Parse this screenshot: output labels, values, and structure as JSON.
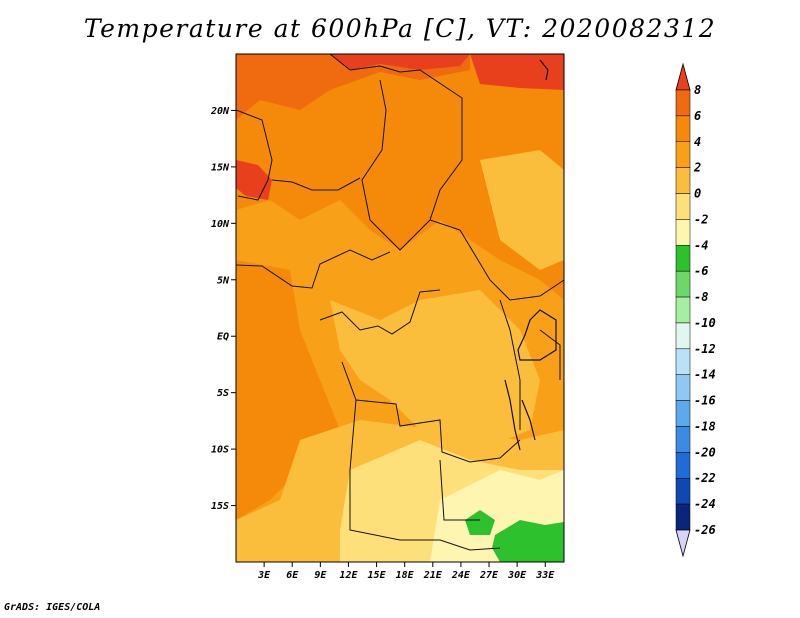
{
  "title": "Temperature at 600hPa [C], VT: 2020082312",
  "footer": "GrADS: IGES/COLA",
  "map": {
    "lon_range": [
      0,
      35
    ],
    "lat_range": [
      -20,
      25
    ],
    "lat_ticks": [
      {
        "value": 20,
        "label": "20N"
      },
      {
        "value": 15,
        "label": "15N"
      },
      {
        "value": 10,
        "label": "10N"
      },
      {
        "value": 5,
        "label": "5N"
      },
      {
        "value": 0,
        "label": "EQ"
      },
      {
        "value": -5,
        "label": "5S"
      },
      {
        "value": -10,
        "label": "10S"
      },
      {
        "value": -15,
        "label": "15S"
      }
    ],
    "lon_ticks": [
      {
        "value": 3,
        "label": "3E"
      },
      {
        "value": 6,
        "label": "6E"
      },
      {
        "value": 9,
        "label": "9E"
      },
      {
        "value": 12,
        "label": "12E"
      },
      {
        "value": 15,
        "label": "15E"
      },
      {
        "value": 18,
        "label": "18E"
      },
      {
        "value": 21,
        "label": "21E"
      },
      {
        "value": 24,
        "label": "24E"
      },
      {
        "value": 27,
        "label": "27E"
      },
      {
        "value": 30,
        "label": "30E"
      },
      {
        "value": 33,
        "label": "33E"
      }
    ]
  },
  "colorbar": {
    "labels": [
      "8",
      "6",
      "4",
      "2",
      "0",
      "-2",
      "-4",
      "-6",
      "-8",
      "-10",
      "-12",
      "-14",
      "-16",
      "-18",
      "-20",
      "-22",
      "-24",
      "-26"
    ],
    "colors": [
      "#e8401c",
      "#f06a10",
      "#f58a0a",
      "#f8a018",
      "#fbbd3c",
      "#fde07a",
      "#fef6b0",
      "#2ec12e",
      "#6ed76a",
      "#a6eea0",
      "#dff7f0",
      "#b8e2f8",
      "#90c8f4",
      "#5ea8ec",
      "#3d8ae4",
      "#1f6cd4",
      "#0f48b0",
      "#08267a",
      "#0a0a50",
      "#d8d4f8"
    ]
  }
}
